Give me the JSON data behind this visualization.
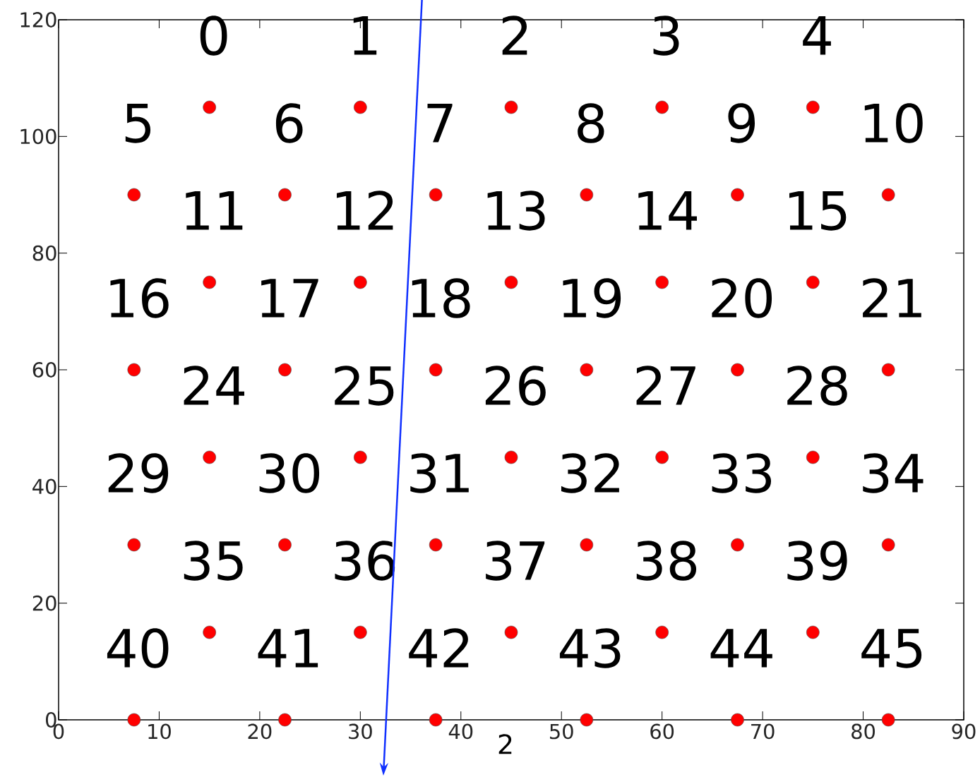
{
  "chart_data": {
    "type": "scatter",
    "xlabel": "2",
    "x": [
      15,
      30,
      45,
      60,
      75,
      7.5,
      22.5,
      37.5,
      52.5,
      67.5,
      82.5,
      15,
      30,
      45,
      60,
      75,
      7.5,
      22.5,
      37.5,
      52.5,
      67.5,
      82.5,
      15,
      30,
      45,
      60,
      75,
      7.5,
      22.5,
      37.5,
      52.5,
      67.5,
      82.5,
      15,
      30,
      45,
      60,
      75,
      7.5,
      22.5,
      37.5,
      52.5,
      67.5,
      82.5
    ],
    "values": [
      105,
      105,
      105,
      105,
      105,
      90,
      90,
      90,
      90,
      90,
      90,
      75,
      75,
      75,
      75,
      75,
      60,
      60,
      60,
      60,
      60,
      60,
      45,
      45,
      45,
      45,
      45,
      30,
      30,
      30,
      30,
      30,
      30,
      15,
      15,
      15,
      15,
      15,
      0,
      0,
      0,
      0,
      0,
      0
    ],
    "color": "#ff0000",
    "marker": "circle",
    "xlim": [
      0,
      90
    ],
    "ylim": [
      0,
      120
    ],
    "xticks": [
      0,
      10,
      20,
      30,
      40,
      50,
      60,
      70,
      80,
      90
    ],
    "yticks": [
      0,
      20,
      40,
      60,
      80,
      100,
      120
    ],
    "annotations": [
      {
        "text": "0",
        "x": 15,
        "y": 105
      },
      {
        "text": "1",
        "x": 30,
        "y": 105
      },
      {
        "text": "2",
        "x": 45,
        "y": 105
      },
      {
        "text": "3",
        "x": 60,
        "y": 105
      },
      {
        "text": "4",
        "x": 75,
        "y": 105
      },
      {
        "text": "5",
        "x": 7.5,
        "y": 90
      },
      {
        "text": "6",
        "x": 22.5,
        "y": 90
      },
      {
        "text": "7",
        "x": 37.5,
        "y": 90
      },
      {
        "text": "8",
        "x": 52.5,
        "y": 90
      },
      {
        "text": "9",
        "x": 67.5,
        "y": 90
      },
      {
        "text": "10",
        "x": 82.5,
        "y": 90
      },
      {
        "text": "11",
        "x": 15,
        "y": 75
      },
      {
        "text": "12",
        "x": 30,
        "y": 75
      },
      {
        "text": "13",
        "x": 45,
        "y": 75
      },
      {
        "text": "14",
        "x": 60,
        "y": 75
      },
      {
        "text": "15",
        "x": 75,
        "y": 75
      },
      {
        "text": "16",
        "x": 7.5,
        "y": 60
      },
      {
        "text": "17",
        "x": 22.5,
        "y": 60
      },
      {
        "text": "18",
        "x": 37.5,
        "y": 60
      },
      {
        "text": "19",
        "x": 52.5,
        "y": 60
      },
      {
        "text": "20",
        "x": 67.5,
        "y": 60
      },
      {
        "text": "21",
        "x": 82.5,
        "y": 60
      },
      {
        "text": "24",
        "x": 15,
        "y": 45
      },
      {
        "text": "25",
        "x": 30,
        "y": 45
      },
      {
        "text": "26",
        "x": 45,
        "y": 45
      },
      {
        "text": "27",
        "x": 60,
        "y": 45
      },
      {
        "text": "28",
        "x": 75,
        "y": 45
      },
      {
        "text": "29",
        "x": 7.5,
        "y": 30
      },
      {
        "text": "30",
        "x": 22.5,
        "y": 30
      },
      {
        "text": "31",
        "x": 37.5,
        "y": 30
      },
      {
        "text": "32",
        "x": 52.5,
        "y": 30
      },
      {
        "text": "33",
        "x": 67.5,
        "y": 30
      },
      {
        "text": "34",
        "x": 82.5,
        "y": 30
      },
      {
        "text": "35",
        "x": 15,
        "y": 15
      },
      {
        "text": "36",
        "x": 30,
        "y": 15
      },
      {
        "text": "37",
        "x": 45,
        "y": 15
      },
      {
        "text": "38",
        "x": 60,
        "y": 15
      },
      {
        "text": "39",
        "x": 75,
        "y": 15
      },
      {
        "text": "40",
        "x": 7.5,
        "y": 0
      },
      {
        "text": "41",
        "x": 22.5,
        "y": 0
      },
      {
        "text": "42",
        "x": 37.5,
        "y": 0
      },
      {
        "text": "43",
        "x": 52.5,
        "y": 0
      },
      {
        "text": "44",
        "x": 67.5,
        "y": 0
      },
      {
        "text": "45",
        "x": 82.5,
        "y": 0
      }
    ]
  }
}
